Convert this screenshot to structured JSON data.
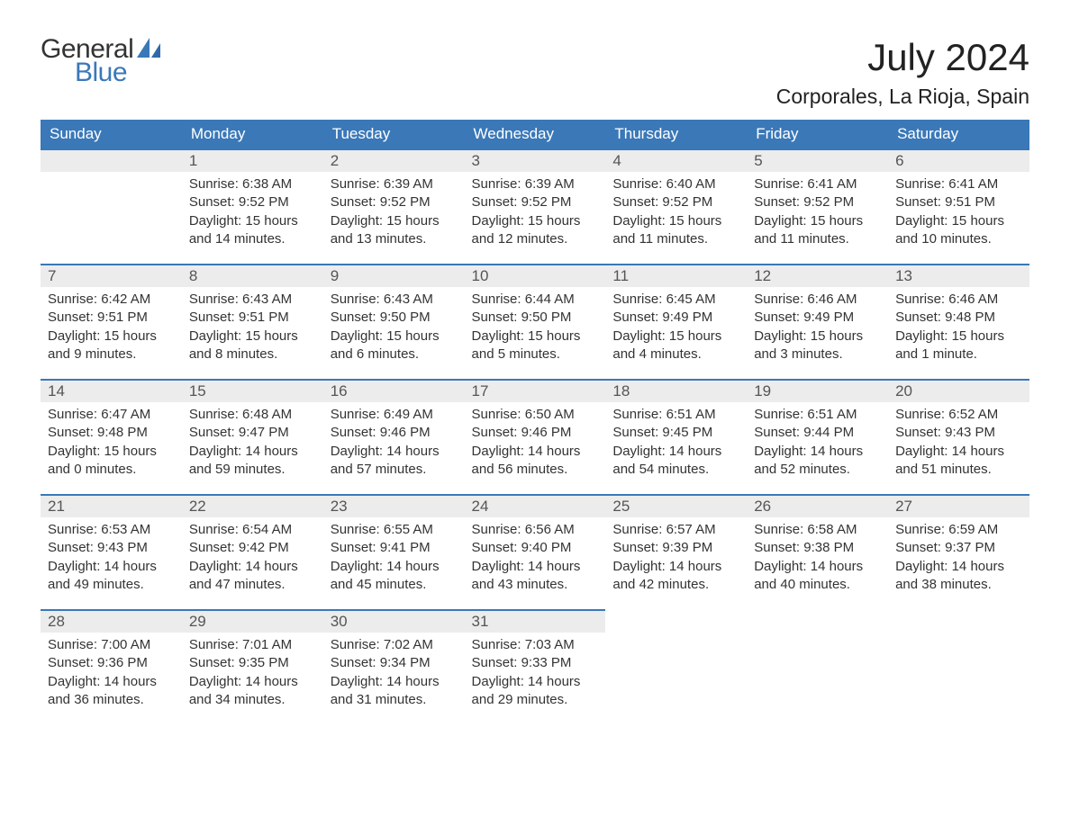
{
  "logo": {
    "line1": "General",
    "line2": "Blue",
    "accent_color": "#3a78b8"
  },
  "title": "July 2024",
  "location": "Corporales, La Rioja, Spain",
  "colors": {
    "header_bg": "#3a78b8",
    "header_text": "#ffffff",
    "daynum_bg": "#ececec",
    "daynum_border": "#3a78b8",
    "body_text": "#333333"
  },
  "typography": {
    "title_fontsize": 42,
    "location_fontsize": 23,
    "header_fontsize": 17,
    "daynum_fontsize": 17,
    "body_fontsize": 15
  },
  "weekdays": [
    "Sunday",
    "Monday",
    "Tuesday",
    "Wednesday",
    "Thursday",
    "Friday",
    "Saturday"
  ],
  "leading_blanks": 1,
  "days": [
    {
      "n": 1,
      "sunrise": "6:38 AM",
      "sunset": "9:52 PM",
      "daylight": "15 hours and 14 minutes."
    },
    {
      "n": 2,
      "sunrise": "6:39 AM",
      "sunset": "9:52 PM",
      "daylight": "15 hours and 13 minutes."
    },
    {
      "n": 3,
      "sunrise": "6:39 AM",
      "sunset": "9:52 PM",
      "daylight": "15 hours and 12 minutes."
    },
    {
      "n": 4,
      "sunrise": "6:40 AM",
      "sunset": "9:52 PM",
      "daylight": "15 hours and 11 minutes."
    },
    {
      "n": 5,
      "sunrise": "6:41 AM",
      "sunset": "9:52 PM",
      "daylight": "15 hours and 11 minutes."
    },
    {
      "n": 6,
      "sunrise": "6:41 AM",
      "sunset": "9:51 PM",
      "daylight": "15 hours and 10 minutes."
    },
    {
      "n": 7,
      "sunrise": "6:42 AM",
      "sunset": "9:51 PM",
      "daylight": "15 hours and 9 minutes."
    },
    {
      "n": 8,
      "sunrise": "6:43 AM",
      "sunset": "9:51 PM",
      "daylight": "15 hours and 8 minutes."
    },
    {
      "n": 9,
      "sunrise": "6:43 AM",
      "sunset": "9:50 PM",
      "daylight": "15 hours and 6 minutes."
    },
    {
      "n": 10,
      "sunrise": "6:44 AM",
      "sunset": "9:50 PM",
      "daylight": "15 hours and 5 minutes."
    },
    {
      "n": 11,
      "sunrise": "6:45 AM",
      "sunset": "9:49 PM",
      "daylight": "15 hours and 4 minutes."
    },
    {
      "n": 12,
      "sunrise": "6:46 AM",
      "sunset": "9:49 PM",
      "daylight": "15 hours and 3 minutes."
    },
    {
      "n": 13,
      "sunrise": "6:46 AM",
      "sunset": "9:48 PM",
      "daylight": "15 hours and 1 minute."
    },
    {
      "n": 14,
      "sunrise": "6:47 AM",
      "sunset": "9:48 PM",
      "daylight": "15 hours and 0 minutes."
    },
    {
      "n": 15,
      "sunrise": "6:48 AM",
      "sunset": "9:47 PM",
      "daylight": "14 hours and 59 minutes."
    },
    {
      "n": 16,
      "sunrise": "6:49 AM",
      "sunset": "9:46 PM",
      "daylight": "14 hours and 57 minutes."
    },
    {
      "n": 17,
      "sunrise": "6:50 AM",
      "sunset": "9:46 PM",
      "daylight": "14 hours and 56 minutes."
    },
    {
      "n": 18,
      "sunrise": "6:51 AM",
      "sunset": "9:45 PM",
      "daylight": "14 hours and 54 minutes."
    },
    {
      "n": 19,
      "sunrise": "6:51 AM",
      "sunset": "9:44 PM",
      "daylight": "14 hours and 52 minutes."
    },
    {
      "n": 20,
      "sunrise": "6:52 AM",
      "sunset": "9:43 PM",
      "daylight": "14 hours and 51 minutes."
    },
    {
      "n": 21,
      "sunrise": "6:53 AM",
      "sunset": "9:43 PM",
      "daylight": "14 hours and 49 minutes."
    },
    {
      "n": 22,
      "sunrise": "6:54 AM",
      "sunset": "9:42 PM",
      "daylight": "14 hours and 47 minutes."
    },
    {
      "n": 23,
      "sunrise": "6:55 AM",
      "sunset": "9:41 PM",
      "daylight": "14 hours and 45 minutes."
    },
    {
      "n": 24,
      "sunrise": "6:56 AM",
      "sunset": "9:40 PM",
      "daylight": "14 hours and 43 minutes."
    },
    {
      "n": 25,
      "sunrise": "6:57 AM",
      "sunset": "9:39 PM",
      "daylight": "14 hours and 42 minutes."
    },
    {
      "n": 26,
      "sunrise": "6:58 AM",
      "sunset": "9:38 PM",
      "daylight": "14 hours and 40 minutes."
    },
    {
      "n": 27,
      "sunrise": "6:59 AM",
      "sunset": "9:37 PM",
      "daylight": "14 hours and 38 minutes."
    },
    {
      "n": 28,
      "sunrise": "7:00 AM",
      "sunset": "9:36 PM",
      "daylight": "14 hours and 36 minutes."
    },
    {
      "n": 29,
      "sunrise": "7:01 AM",
      "sunset": "9:35 PM",
      "daylight": "14 hours and 34 minutes."
    },
    {
      "n": 30,
      "sunrise": "7:02 AM",
      "sunset": "9:34 PM",
      "daylight": "14 hours and 31 minutes."
    },
    {
      "n": 31,
      "sunrise": "7:03 AM",
      "sunset": "9:33 PM",
      "daylight": "14 hours and 29 minutes."
    }
  ],
  "labels": {
    "sunrise": "Sunrise:",
    "sunset": "Sunset:",
    "daylight": "Daylight:"
  }
}
